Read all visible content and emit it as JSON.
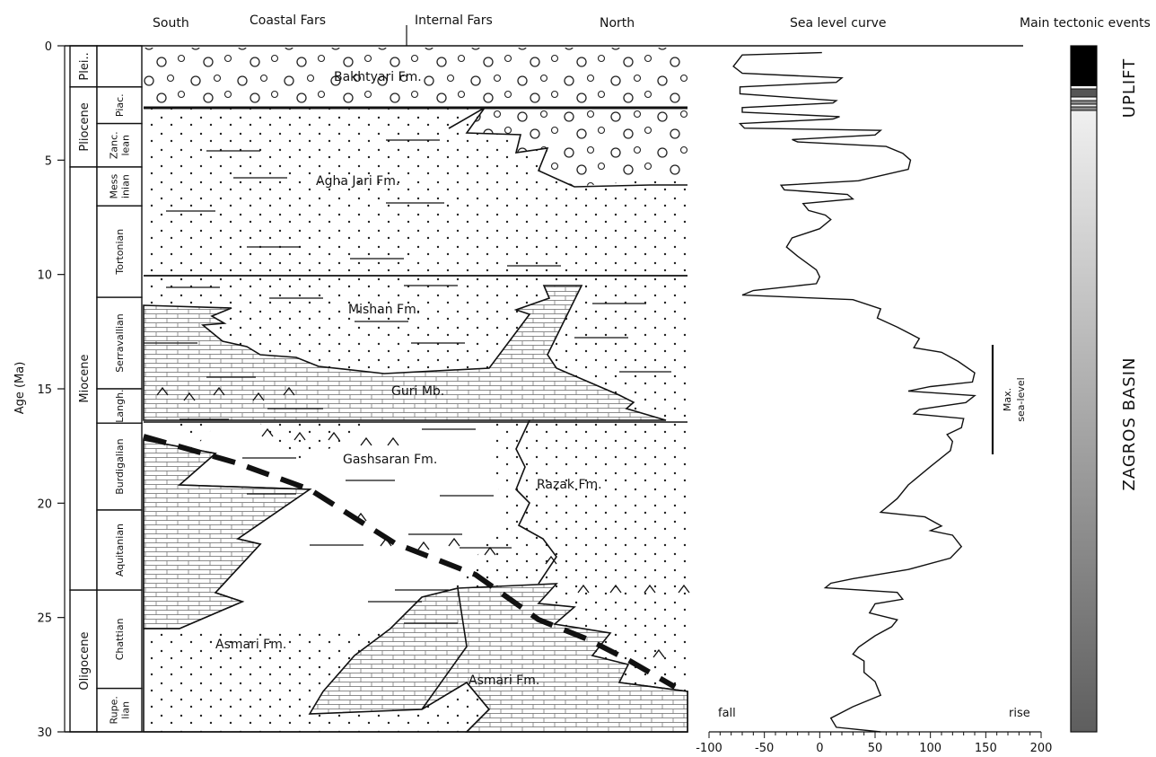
{
  "headers": {
    "south": "South",
    "coastal": "Coastal Fars",
    "internal": "Internal Fars",
    "north": "North",
    "sea_level_curve": "Sea level curve",
    "tectonic_events": "Main tectonic events"
  },
  "age_axis": {
    "label": "Age (Ma)",
    "ticks": [
      "0",
      "5",
      "10",
      "15",
      "20",
      "25",
      "30"
    ]
  },
  "epochs": [
    {
      "name": "Plei..",
      "from": 0,
      "to": 1.8
    },
    {
      "name": "Pliocene",
      "from": 1.8,
      "to": 5.3
    },
    {
      "name": "Miocene",
      "from": 5.3,
      "to": 23.8
    },
    {
      "name": "Oligocene",
      "from": 23.8,
      "to": 30
    }
  ],
  "stages": [
    {
      "lines": [
        ""
      ],
      "from": 0,
      "to": 1.8
    },
    {
      "lines": [
        "Piac."
      ],
      "from": 1.8,
      "to": 3.4
    },
    {
      "lines": [
        "Zanc.",
        "lean"
      ],
      "from": 3.4,
      "to": 5.3
    },
    {
      "lines": [
        "Mess",
        "inian"
      ],
      "from": 5.3,
      "to": 7.0
    },
    {
      "lines": [
        "Tortonian"
      ],
      "from": 7.0,
      "to": 11.0
    },
    {
      "lines": [
        "Serravallian"
      ],
      "from": 11.0,
      "to": 15.0
    },
    {
      "lines": [
        "Langh."
      ],
      "from": 15.0,
      "to": 16.5
    },
    {
      "lines": [
        "Burdigalian"
      ],
      "from": 16.5,
      "to": 20.3
    },
    {
      "lines": [
        "Aquitanian"
      ],
      "from": 20.3,
      "to": 23.8
    },
    {
      "lines": [
        "Chattian"
      ],
      "from": 23.8,
      "to": 28.1
    },
    {
      "lines": [
        "Rupe.",
        "lian"
      ],
      "from": 28.1,
      "to": 30
    }
  ],
  "formations": {
    "bakhtyari": "Bakhtyari Fm.",
    "agha_jari": "Agha Jari Fm.",
    "mishan": "Mishan Fm.",
    "guri": "Guri Mb.",
    "gachsaran": "Gashsaran Fm.",
    "razak": "Razak Fm.",
    "asmari_1": "Asmari Fm.",
    "asmari_2": "Asmari Fm."
  },
  "sea_level": {
    "x_ticks": [
      "-100",
      "-50",
      "0",
      "50",
      "100",
      "150",
      "200"
    ],
    "fall": "fall",
    "rise": "rise",
    "max_label_1": "Max.",
    "max_label_2": "sea-level",
    "curve": [
      [
        0.3,
        2
      ],
      [
        0.4,
        -70
      ],
      [
        0.9,
        -78
      ],
      [
        1.2,
        -70
      ],
      [
        1.4,
        20
      ],
      [
        1.6,
        15
      ],
      [
        1.8,
        -72
      ],
      [
        2.1,
        -72
      ],
      [
        2.4,
        15
      ],
      [
        2.5,
        12
      ],
      [
        2.7,
        -70
      ],
      [
        2.9,
        -70
      ],
      [
        3.1,
        18
      ],
      [
        3.2,
        12
      ],
      [
        3.4,
        -72
      ],
      [
        3.6,
        -68
      ],
      [
        3.7,
        55
      ],
      [
        3.9,
        50
      ],
      [
        4.1,
        -25
      ],
      [
        4.2,
        -20
      ],
      [
        4.4,
        60
      ],
      [
        4.7,
        75
      ],
      [
        5.0,
        82
      ],
      [
        5.4,
        80
      ],
      [
        5.9,
        35
      ],
      [
        6.1,
        -35
      ],
      [
        6.3,
        -32
      ],
      [
        6.5,
        25
      ],
      [
        6.7,
        30
      ],
      [
        6.9,
        -15
      ],
      [
        7.2,
        -10
      ],
      [
        7.4,
        5
      ],
      [
        7.6,
        10
      ],
      [
        8.0,
        0
      ],
      [
        8.4,
        -25
      ],
      [
        8.8,
        -30
      ],
      [
        9.2,
        -20
      ],
      [
        9.8,
        -3
      ],
      [
        10.1,
        0
      ],
      [
        10.4,
        -3
      ],
      [
        10.7,
        -60
      ],
      [
        10.9,
        -70
      ],
      [
        11.1,
        30
      ],
      [
        11.5,
        55
      ],
      [
        11.9,
        52
      ],
      [
        12.3,
        70
      ],
      [
        12.8,
        90
      ],
      [
        13.2,
        85
      ],
      [
        13.4,
        110
      ],
      [
        13.8,
        125
      ],
      [
        14.3,
        140
      ],
      [
        14.7,
        138
      ],
      [
        14.9,
        100
      ],
      [
        15.1,
        80
      ],
      [
        15.3,
        140
      ],
      [
        15.6,
        132
      ],
      [
        15.9,
        90
      ],
      [
        16.1,
        85
      ],
      [
        16.3,
        130
      ],
      [
        16.7,
        128
      ],
      [
        17.0,
        115
      ],
      [
        17.3,
        120
      ],
      [
        17.7,
        118
      ],
      [
        18.4,
        100
      ],
      [
        19.2,
        80
      ],
      [
        19.8,
        70
      ],
      [
        20.4,
        55
      ],
      [
        20.6,
        95
      ],
      [
        21.0,
        110
      ],
      [
        21.2,
        100
      ],
      [
        21.4,
        120
      ],
      [
        21.9,
        128
      ],
      [
        22.4,
        118
      ],
      [
        22.9,
        80
      ],
      [
        23.3,
        30
      ],
      [
        23.5,
        10
      ],
      [
        23.7,
        5
      ],
      [
        23.9,
        70
      ],
      [
        24.2,
        75
      ],
      [
        24.4,
        50
      ],
      [
        24.8,
        45
      ],
      [
        25.1,
        70
      ],
      [
        25.4,
        65
      ],
      [
        25.8,
        50
      ],
      [
        26.3,
        35
      ],
      [
        26.6,
        30
      ],
      [
        26.9,
        40
      ],
      [
        27.4,
        40
      ],
      [
        27.8,
        50
      ],
      [
        28.4,
        55
      ],
      [
        28.9,
        30
      ],
      [
        29.4,
        10
      ],
      [
        29.8,
        15
      ],
      [
        30.0,
        55
      ]
    ]
  },
  "tectonics": {
    "uplift": "UPLIFT",
    "basin": "ZAGROS BASIN",
    "colors": {
      "black": "#000000",
      "dark": "#555555",
      "gray_top": "#ffffff",
      "gray_bottom": "#5e5e5e"
    }
  }
}
